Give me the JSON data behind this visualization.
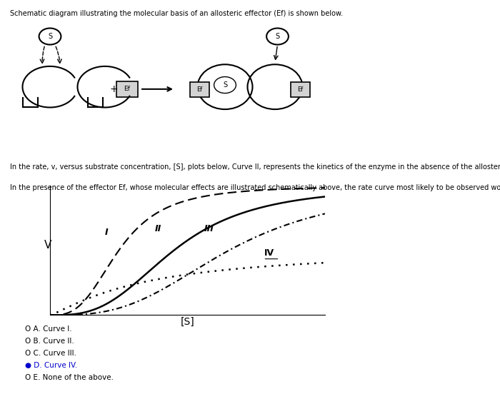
{
  "title_text": "Schematic diagram illustrating the molecular basis of an allosteric effector (Ef) is shown below.",
  "paragraph1": "In the rate, v, versus substrate concentration, [S], plots below, Curve II, represents the kinetics of the enzyme in the absence of the allosteric effector Ef.",
  "paragraph2": "In the presence of the effector Ef, whose molecular effects are illustrated schematically above, the rate curve most likely to be observed would be:",
  "xlabel": "[S]",
  "ylabel": "V",
  "curve_labels": [
    "I",
    "II",
    "III",
    "IV"
  ],
  "options": [
    "O A. Curve I.",
    "O B. Curve II.",
    "O C. Curve III.",
    "● D. Curve IV.",
    "O E. None of the above."
  ],
  "selected_option": 3,
  "bg_color": "#ffffff",
  "text_color": "#000000",
  "curve_color": "#000000",
  "fig_width": 7.0,
  "fig_height": 5.66,
  "dpi": 100
}
